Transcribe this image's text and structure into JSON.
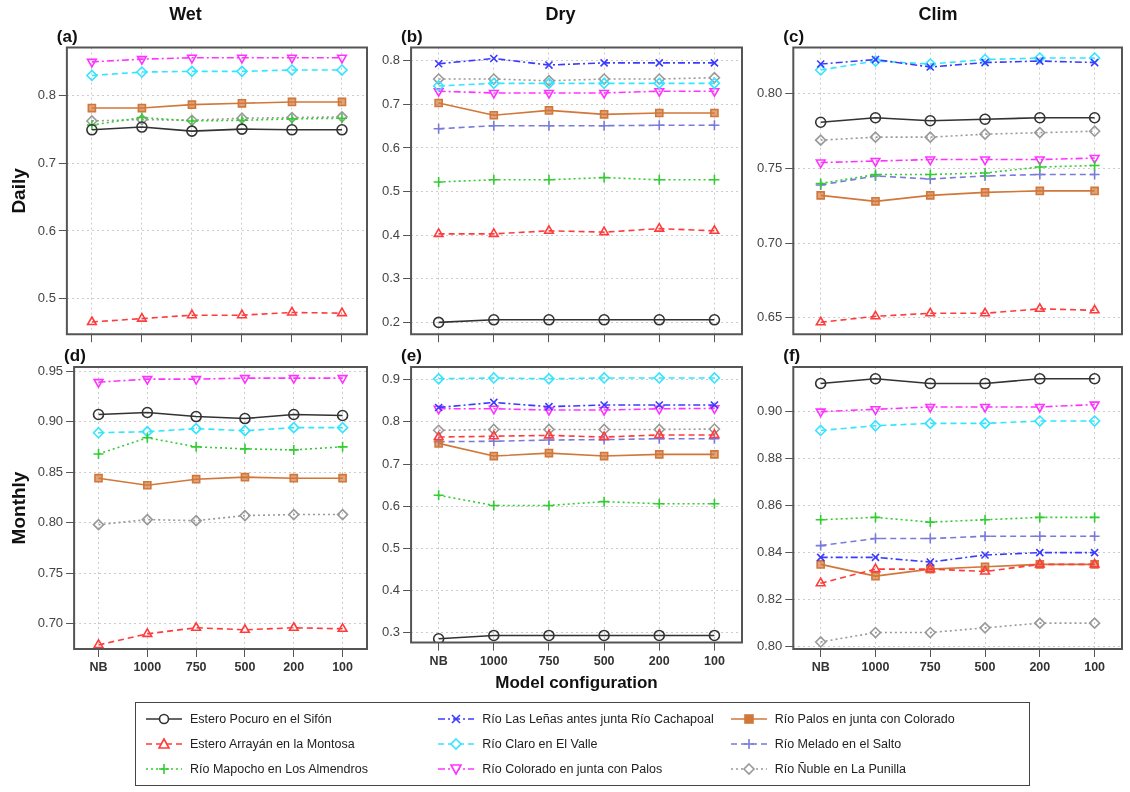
{
  "chart_data": [
    {
      "type": "line",
      "title": "Wet",
      "ylabel": "Daily",
      "annotations": [
        "(a)"
      ],
      "categories": [
        null,
        null,
        null,
        null,
        null,
        null
      ],
      "ylim": [
        0.448,
        0.87
      ],
      "yticks": [
        0.5,
        0.6,
        0.7,
        0.8
      ],
      "grid": true,
      "tick_labels": "y",
      "series": [
        {
          "color": "#333333",
          "line_style": "solid",
          "marker": "circle",
          "values": [
            0.749,
            0.753,
            0.747,
            0.75,
            0.749,
            0.749
          ]
        },
        {
          "color": "#ff3b3b",
          "line_style": "dashed",
          "marker": "triangle",
          "values": [
            0.466,
            0.471,
            0.476,
            0.476,
            0.48,
            0.479
          ]
        },
        {
          "color": "#33cc33",
          "line_style": "dotted",
          "marker": "cross",
          "values": [
            0.756,
            0.767,
            0.762,
            0.763,
            0.765,
            0.766
          ]
        },
        {
          "color": "#33e5ff",
          "line_style": "dashed",
          "marker": "diamond",
          "values": [
            0.829,
            0.834,
            0.835,
            0.835,
            0.837,
            0.837
          ]
        },
        {
          "color": "#ff33ff",
          "line_style": "dashdot",
          "marker": "triangle-down",
          "values": [
            0.849,
            0.853,
            0.855,
            0.855,
            0.855,
            0.855
          ]
        },
        {
          "color": "#d2773a",
          "line_style": "solid",
          "marker": "square",
          "values": [
            0.781,
            0.781,
            0.786,
            0.788,
            0.79,
            0.79
          ]
        },
        {
          "color": "#999999",
          "line_style": "dotted",
          "marker": "diamond",
          "values": [
            0.762,
            0.764,
            0.763,
            0.766,
            0.767,
            0.768
          ]
        }
      ]
    },
    {
      "type": "line",
      "title": "Dry",
      "annotations": [
        "(b)"
      ],
      "categories": [
        null,
        null,
        null,
        null,
        null,
        null
      ],
      "ylim": [
        0.173,
        0.83
      ],
      "yticks": [
        0.2,
        0.3,
        0.4,
        0.5,
        0.6,
        0.7,
        0.8
      ],
      "grid": true,
      "tick_labels": "y",
      "series": [
        {
          "color": "#333333",
          "line_style": "solid",
          "marker": "circle",
          "values": [
            0.2,
            0.206,
            0.206,
            0.206,
            0.206,
            0.206
          ]
        },
        {
          "color": "#ff3b3b",
          "line_style": "dashed",
          "marker": "triangle",
          "values": [
            0.403,
            0.403,
            0.41,
            0.407,
            0.415,
            0.41
          ]
        },
        {
          "color": "#33cc33",
          "line_style": "dotted",
          "marker": "cross",
          "values": [
            0.522,
            0.527,
            0.527,
            0.532,
            0.527,
            0.527
          ]
        },
        {
          "color": "#3b3bff",
          "line_style": "dashdot",
          "marker": "x",
          "values": [
            0.793,
            0.805,
            0.79,
            0.795,
            0.795,
            0.795
          ]
        },
        {
          "color": "#33e5ff",
          "line_style": "dashed",
          "marker": "diamond",
          "values": [
            0.742,
            0.748,
            0.748,
            0.748,
            0.748,
            0.748
          ]
        },
        {
          "color": "#ff33ff",
          "line_style": "dashdot",
          "marker": "triangle-down",
          "values": [
            0.73,
            0.726,
            0.726,
            0.726,
            0.73,
            0.73
          ]
        },
        {
          "color": "#d2773a",
          "line_style": "solid",
          "marker": "square",
          "values": [
            0.703,
            0.675,
            0.686,
            0.677,
            0.68,
            0.68
          ]
        },
        {
          "color": "#7a7adb",
          "line_style": "dashed",
          "marker": "cross",
          "values": [
            0.644,
            0.651,
            0.651,
            0.651,
            0.652,
            0.652
          ]
        },
        {
          "color": "#999999",
          "line_style": "dotted",
          "marker": "diamond",
          "values": [
            0.758,
            0.758,
            0.754,
            0.758,
            0.758,
            0.761
          ]
        }
      ]
    },
    {
      "type": "line",
      "title": "Clim",
      "annotations": [
        "(c)"
      ],
      "categories": [
        null,
        null,
        null,
        null,
        null,
        null
      ],
      "ylim": [
        0.639,
        0.831
      ],
      "yticks": [
        {
          "value": 0.65,
          "label": "0.65"
        },
        {
          "value": 0.7,
          "label": "0.70"
        },
        {
          "value": 0.75,
          "label": "0.75"
        },
        {
          "value": 0.8,
          "label": "0.80"
        }
      ],
      "grid": true,
      "tick_labels": "y",
      "series": [
        {
          "color": "#333333",
          "line_style": "solid",
          "marker": "circle",
          "values": [
            0.781,
            0.784,
            0.782,
            0.783,
            0.784,
            0.784
          ]
        },
        {
          "color": "#ff3b3b",
          "line_style": "dashed",
          "marker": "triangle",
          "values": [
            0.647,
            0.651,
            0.653,
            0.653,
            0.656,
            0.655
          ]
        },
        {
          "color": "#33cc33",
          "line_style": "dotted",
          "marker": "cross",
          "values": [
            0.74,
            0.746,
            0.746,
            0.747,
            0.751,
            0.752
          ]
        },
        {
          "color": "#3b3bff",
          "line_style": "dashdot",
          "marker": "x",
          "values": [
            0.82,
            0.823,
            0.818,
            0.821,
            0.822,
            0.821
          ]
        },
        {
          "color": "#33e5ff",
          "line_style": "dashed",
          "marker": "diamond",
          "values": [
            0.816,
            0.822,
            0.82,
            0.823,
            0.824,
            0.824
          ]
        },
        {
          "color": "#ff33ff",
          "line_style": "dashdot",
          "marker": "triangle-down",
          "values": [
            0.754,
            0.755,
            0.756,
            0.756,
            0.756,
            0.757
          ]
        },
        {
          "color": "#d2773a",
          "line_style": "solid",
          "marker": "square",
          "values": [
            0.732,
            0.728,
            0.732,
            0.734,
            0.735,
            0.735
          ]
        },
        {
          "color": "#7a7adb",
          "line_style": "dashed",
          "marker": "cross",
          "values": [
            0.739,
            0.745,
            0.743,
            0.745,
            0.746,
            0.746
          ]
        },
        {
          "color": "#999999",
          "line_style": "dotted",
          "marker": "diamond",
          "values": [
            0.769,
            0.771,
            0.771,
            0.773,
            0.774,
            0.775
          ]
        }
      ]
    },
    {
      "type": "line",
      "ylabel": "Monthly",
      "annotations": [
        "(d)"
      ],
      "categories": [
        "NB",
        "1000",
        "750",
        "500",
        "200",
        "100"
      ],
      "ylim": [
        0.675,
        0.954
      ],
      "yticks": [
        {
          "value": 0.7,
          "label": "0.70"
        },
        {
          "value": 0.75,
          "label": "0.75"
        },
        {
          "value": 0.8,
          "label": "0.80"
        },
        {
          "value": 0.85,
          "label": "0.85"
        },
        {
          "value": 0.9,
          "label": "0.90"
        },
        {
          "value": 0.95,
          "label": "0.95"
        }
      ],
      "grid": true,
      "series": [
        {
          "color": "#333333",
          "line_style": "solid",
          "marker": "circle",
          "values": [
            0.907,
            0.909,
            0.905,
            0.903,
            0.907,
            0.906
          ]
        },
        {
          "color": "#ff3b3b",
          "line_style": "dashed",
          "marker": "triangle",
          "values": [
            0.679,
            0.69,
            0.696,
            0.694,
            0.696,
            0.695
          ]
        },
        {
          "color": "#33cc33",
          "line_style": "dotted",
          "marker": "cross",
          "values": [
            0.868,
            0.884,
            0.875,
            0.873,
            0.872,
            0.875
          ]
        },
        {
          "color": "#33e5ff",
          "line_style": "dashed",
          "marker": "diamond",
          "values": [
            0.889,
            0.89,
            0.893,
            0.891,
            0.894,
            0.894
          ]
        },
        {
          "color": "#ff33ff",
          "line_style": "dashdot",
          "marker": "triangle-down",
          "values": [
            0.939,
            0.942,
            0.942,
            0.943,
            0.943,
            0.943
          ]
        },
        {
          "color": "#d2773a",
          "line_style": "solid",
          "marker": "square",
          "values": [
            0.844,
            0.837,
            0.843,
            0.845,
            0.844,
            0.844
          ]
        },
        {
          "color": "#999999",
          "line_style": "dotted",
          "marker": "diamond",
          "values": [
            0.798,
            0.803,
            0.802,
            0.807,
            0.808,
            0.808
          ]
        }
      ]
    },
    {
      "type": "line",
      "xlabel": "Model configuration",
      "annotations": [
        "(e)"
      ],
      "legend": "bottom",
      "categories": [
        "NB",
        "1000",
        "750",
        "500",
        "200",
        "100"
      ],
      "ylim": [
        0.277,
        0.93
      ],
      "yticks": [
        0.3,
        0.4,
        0.5,
        0.6,
        0.7,
        0.8,
        0.9
      ],
      "grid": true,
      "series": [
        {
          "name": "Estero Pocuro en el Sifón",
          "color": "#333333",
          "line_style": "solid",
          "marker": "circle",
          "values": [
            0.286,
            0.294,
            0.294,
            0.294,
            0.294,
            0.294
          ]
        },
        {
          "name": "Estero Arrayán en la Montosa",
          "color": "#ff3b3b",
          "line_style": "dashed",
          "marker": "triangle",
          "values": [
            0.764,
            0.766,
            0.768,
            0.764,
            0.769,
            0.769
          ]
        },
        {
          "name": "Río Mapocho en Los Almendros",
          "color": "#33cc33",
          "line_style": "dotted",
          "marker": "cross",
          "values": [
            0.626,
            0.602,
            0.602,
            0.611,
            0.606,
            0.606
          ]
        },
        {
          "name": "Río Las Leñas antes junta Río Cachapoal",
          "color": "#3b3bff",
          "line_style": "dashdot",
          "marker": "x",
          "values": [
            0.834,
            0.846,
            0.836,
            0.84,
            0.84,
            0.84
          ]
        },
        {
          "name": "Río Claro en El Valle",
          "color": "#33e5ff",
          "line_style": "dashed",
          "marker": "diamond",
          "values": [
            0.902,
            0.904,
            0.902,
            0.904,
            0.904,
            0.904
          ]
        },
        {
          "name": "Río Colorado en junta con Palos",
          "color": "#ff33ff",
          "line_style": "dashdot",
          "marker": "triangle-down",
          "values": [
            0.831,
            0.831,
            0.828,
            0.828,
            0.831,
            0.832
          ]
        },
        {
          "name": "Río Palos en junta con Colorado",
          "color": "#d2773a",
          "line_style": "solid",
          "marker": "square",
          "values": [
            0.749,
            0.719,
            0.726,
            0.719,
            0.723,
            0.723
          ]
        },
        {
          "name": "Río Melado en el Salto",
          "color": "#7a7adb",
          "line_style": "dashed",
          "marker": "cross",
          "values": [
            0.753,
            0.754,
            0.757,
            0.758,
            0.76,
            0.76
          ]
        },
        {
          "name": "Río Ñuble en La Punilla",
          "color": "#999999",
          "line_style": "dotted",
          "marker": "diamond",
          "values": [
            0.78,
            0.782,
            0.782,
            0.782,
            0.782,
            0.783
          ]
        }
      ]
    },
    {
      "type": "line",
      "annotations": [
        "(f)"
      ],
      "categories": [
        "NB",
        "1000",
        "750",
        "500",
        "200",
        "100"
      ],
      "ylim": [
        0.799,
        0.919
      ],
      "yticks": [
        {
          "value": 0.8,
          "label": "0.80"
        },
        {
          "value": 0.82,
          "label": "0.82"
        },
        {
          "value": 0.84,
          "label": "0.84"
        },
        {
          "value": 0.86,
          "label": "0.86"
        },
        {
          "value": 0.88,
          "label": "0.88"
        },
        {
          "value": 0.9,
          "label": "0.90"
        }
      ],
      "grid": true,
      "series": [
        {
          "color": "#333333",
          "line_style": "solid",
          "marker": "circle",
          "values": [
            0.912,
            0.914,
            0.912,
            0.912,
            0.914,
            0.914
          ]
        },
        {
          "color": "#ff3b3b",
          "line_style": "dashed",
          "marker": "triangle",
          "values": [
            0.827,
            0.833,
            0.833,
            0.832,
            0.835,
            0.835
          ]
        },
        {
          "color": "#33cc33",
          "line_style": "dotted",
          "marker": "cross",
          "values": [
            0.854,
            0.855,
            0.853,
            0.854,
            0.855,
            0.855
          ]
        },
        {
          "color": "#3b3bff",
          "line_style": "dashdot",
          "marker": "x",
          "values": [
            0.838,
            0.838,
            0.836,
            0.839,
            0.84,
            0.84
          ]
        },
        {
          "color": "#33e5ff",
          "line_style": "dashed",
          "marker": "diamond",
          "values": [
            0.892,
            0.894,
            0.895,
            0.895,
            0.896,
            0.896
          ]
        },
        {
          "color": "#ff33ff",
          "line_style": "dashdot",
          "marker": "triangle-down",
          "values": [
            0.9,
            0.901,
            0.902,
            0.902,
            0.902,
            0.903
          ]
        },
        {
          "color": "#d2773a",
          "line_style": "solid",
          "marker": "square",
          "values": [
            0.835,
            0.83,
            0.833,
            0.834,
            0.835,
            0.835
          ]
        },
        {
          "color": "#7a7adb",
          "line_style": "dashed",
          "marker": "cross",
          "values": [
            0.843,
            0.846,
            0.846,
            0.847,
            0.847,
            0.847
          ]
        },
        {
          "color": "#999999",
          "line_style": "dotted",
          "marker": "diamond",
          "values": [
            0.802,
            0.806,
            0.806,
            0.808,
            0.81,
            0.81
          ]
        }
      ]
    }
  ]
}
